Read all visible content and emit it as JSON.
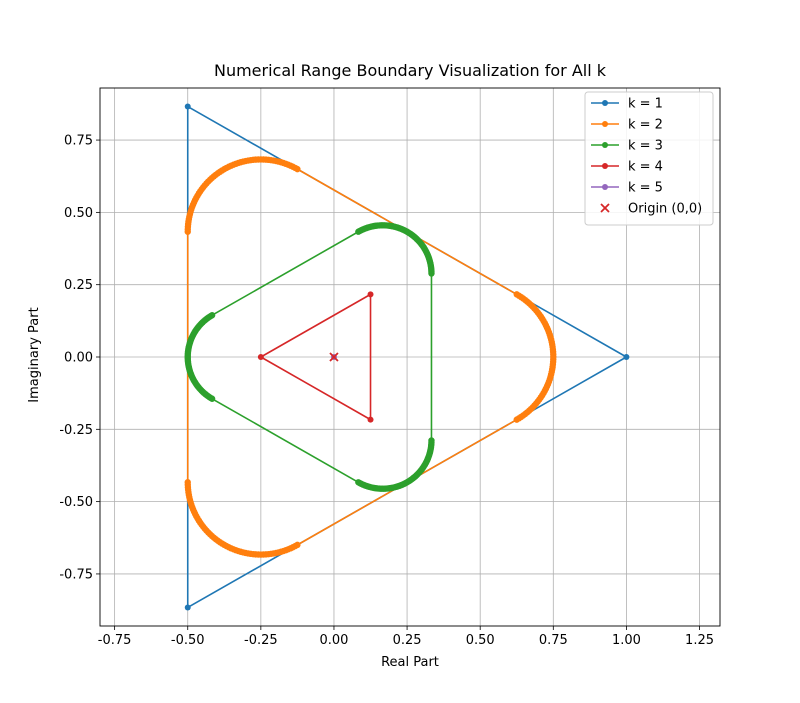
{
  "chart_data": {
    "type": "line",
    "title": "Numerical Range Boundary Visualization for All k",
    "xlabel": "Real Part",
    "ylabel": "Imaginary Part",
    "xlim": [
      -0.8,
      1.32
    ],
    "ylim": [
      -0.93,
      0.93
    ],
    "xticks": [
      "-0.75",
      "-0.50",
      "-0.25",
      "0.00",
      "0.25",
      "0.50",
      "0.75",
      "1.00",
      "1.25"
    ],
    "yticks": [
      "-0.75",
      "-0.50",
      "-0.25",
      "0.00",
      "0.25",
      "0.50",
      "0.75"
    ],
    "grid": true,
    "legend_position": "top-right",
    "series": [
      {
        "name": "k = 1",
        "color": "#1f77b4",
        "closed": true,
        "points": [
          [
            1.0,
            0.0
          ],
          [
            -0.5,
            0.866
          ],
          [
            -0.5,
            -0.866
          ]
        ]
      },
      {
        "name": "k = 2",
        "color": "#ff7f0e",
        "closed": true,
        "arcs": [
          {
            "cx": 0.5,
            "cy": 0.0,
            "r": 0.25,
            "a0": -60,
            "a1": 60
          },
          {
            "cx": -0.25,
            "cy": 0.433,
            "r": 0.25,
            "a0": 60,
            "a1": 180
          },
          {
            "cx": -0.25,
            "cy": -0.433,
            "r": 0.25,
            "a0": 180,
            "a1": 300
          }
        ]
      },
      {
        "name": "k = 3",
        "color": "#2ca02c",
        "closed": true,
        "arcs": [
          {
            "cx": 0.1667,
            "cy": 0.2887,
            "r": 0.1667,
            "a0": 0,
            "a1": 120
          },
          {
            "cx": -0.3333,
            "cy": 0.0,
            "r": 0.1667,
            "a0": 120,
            "a1": 240
          },
          {
            "cx": 0.1667,
            "cy": -0.2887,
            "r": 0.1667,
            "a0": 240,
            "a1": 360
          }
        ]
      },
      {
        "name": "k = 4",
        "color": "#d62728",
        "closed": true,
        "points": [
          [
            -0.25,
            0.0
          ],
          [
            0.125,
            0.2165
          ],
          [
            0.125,
            -0.2165
          ]
        ]
      },
      {
        "name": "k = 5",
        "color": "#9467bd",
        "closed": false,
        "points": [
          [
            0.0,
            0.0
          ]
        ]
      }
    ],
    "origin_marker": {
      "name": "Origin (0,0)",
      "color": "#d62728",
      "x": 0.0,
      "y": 0.0
    }
  }
}
